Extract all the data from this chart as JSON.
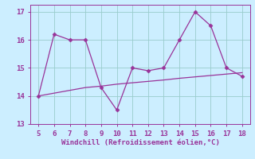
{
  "x": [
    5,
    6,
    7,
    8,
    9,
    10,
    11,
    12,
    13,
    14,
    15,
    16,
    17,
    18
  ],
  "y_main": [
    14.0,
    16.2,
    16.0,
    16.0,
    14.3,
    13.5,
    15.0,
    14.9,
    15.0,
    16.0,
    17.0,
    16.5,
    15.0,
    14.7
  ],
  "y_trend": [
    14.0,
    14.1,
    14.2,
    14.3,
    14.35,
    14.42,
    14.47,
    14.52,
    14.57,
    14.63,
    14.68,
    14.73,
    14.78,
    14.83
  ],
  "line_color": "#993399",
  "bg_color": "#cceeff",
  "grid_color": "#99cccc",
  "text_color": "#993399",
  "xlabel": "Windchill (Refroidissement éolien,°C)",
  "xlim": [
    4.5,
    18.5
  ],
  "ylim": [
    13,
    17.25
  ],
  "yticks": [
    13,
    14,
    15,
    16,
    17
  ],
  "xticks": [
    5,
    6,
    7,
    8,
    9,
    10,
    11,
    12,
    13,
    14,
    15,
    16,
    17,
    18
  ],
  "figsize": [
    3.2,
    2.0
  ],
  "dpi": 100
}
